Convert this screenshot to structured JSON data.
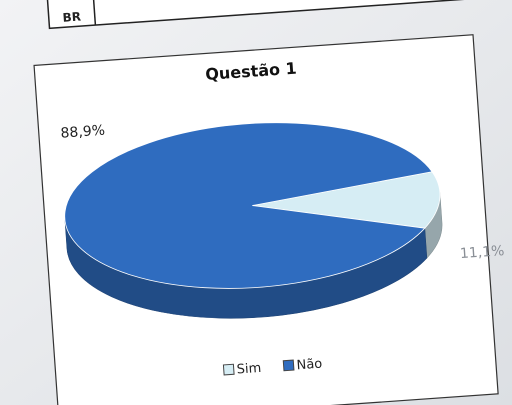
{
  "fragment": {
    "text": "BR"
  },
  "chart_data": {
    "type": "pie",
    "title": "Questão 1",
    "categories": [
      "Sim",
      "Não"
    ],
    "values": [
      11.1,
      88.9
    ],
    "value_labels": [
      "11,1%",
      "88,9%"
    ],
    "colors": [
      "#d6edf4",
      "#2f6cbf"
    ],
    "legend": "bottom"
  }
}
